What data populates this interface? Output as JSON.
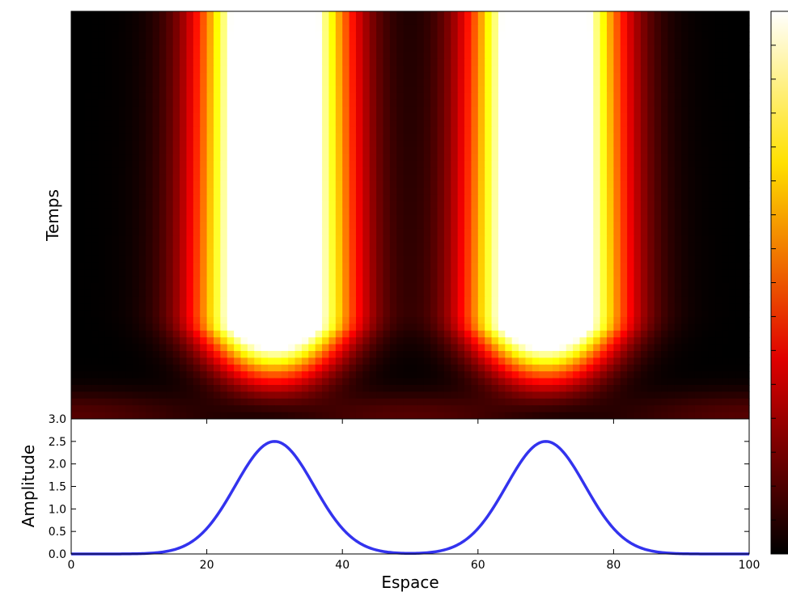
{
  "chart_data": [
    {
      "type": "heatmap",
      "title": "",
      "xlabel": "",
      "ylabel": "Temps",
      "x": [
        0,
        100
      ],
      "colormap": "hot",
      "description_values": {
        "peak_centers": [
          30,
          70
        ],
        "band_formation_rows": "bottom of map, peaks emerge from low background"
      },
      "colorbar": {
        "visible": true,
        "tick_labels": []
      }
    },
    {
      "type": "line",
      "title": "",
      "xlabel": "Espace",
      "ylabel": "Amplitude",
      "xlim": [
        0,
        100
      ],
      "ylim": [
        0,
        3.0
      ],
      "xticks": [
        "0",
        "20",
        "40",
        "60",
        "80",
        "100"
      ],
      "yticks": [
        "0.0",
        "0.5",
        "1.0",
        "1.5",
        "2.0",
        "2.5",
        "3.0"
      ],
      "line_color": "#3333ee",
      "series": [
        {
          "x": [
            0,
            10,
            15,
            18,
            20,
            22,
            24,
            26,
            28,
            30,
            32,
            34,
            36,
            38,
            40,
            42,
            45,
            50,
            55,
            58,
            60,
            62,
            64,
            66,
            68,
            70,
            72,
            74,
            76,
            78,
            80,
            82,
            85,
            90,
            100
          ],
          "values": [
            0.0,
            0.0,
            0.02,
            0.12,
            0.3,
            0.7,
            1.25,
            1.85,
            2.32,
            2.5,
            2.32,
            1.85,
            1.25,
            0.7,
            0.3,
            0.12,
            0.02,
            0.0,
            0.02,
            0.12,
            0.3,
            0.7,
            1.25,
            1.85,
            2.32,
            2.5,
            2.32,
            1.85,
            1.25,
            0.7,
            0.3,
            0.12,
            0.02,
            0.0,
            0.0
          ]
        }
      ]
    }
  ]
}
